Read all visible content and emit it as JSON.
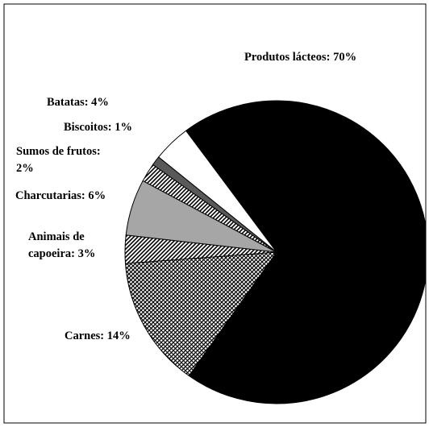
{
  "chart_data": {
    "type": "pie",
    "labels": [
      "Produtos lácteos: 70%",
      "Carnes: 14%",
      "Animais de\ncapoeira: 3%",
      "Charcutarias: 6%",
      "Sumos de frutos:\n2%",
      "Biscoitos: 1%",
      "Batatas: 4%"
    ],
    "values": [
      70,
      14,
      3,
      6,
      2,
      1,
      4
    ],
    "colors": [
      "#000000",
      "#000000",
      "#000000",
      "#a6a6a6",
      "#000000",
      "#595959",
      "#ffffff"
    ],
    "patterns": [
      "solid",
      "crosshatch",
      "hatch",
      "solid",
      "hatch",
      "solid",
      "solid"
    ]
  }
}
